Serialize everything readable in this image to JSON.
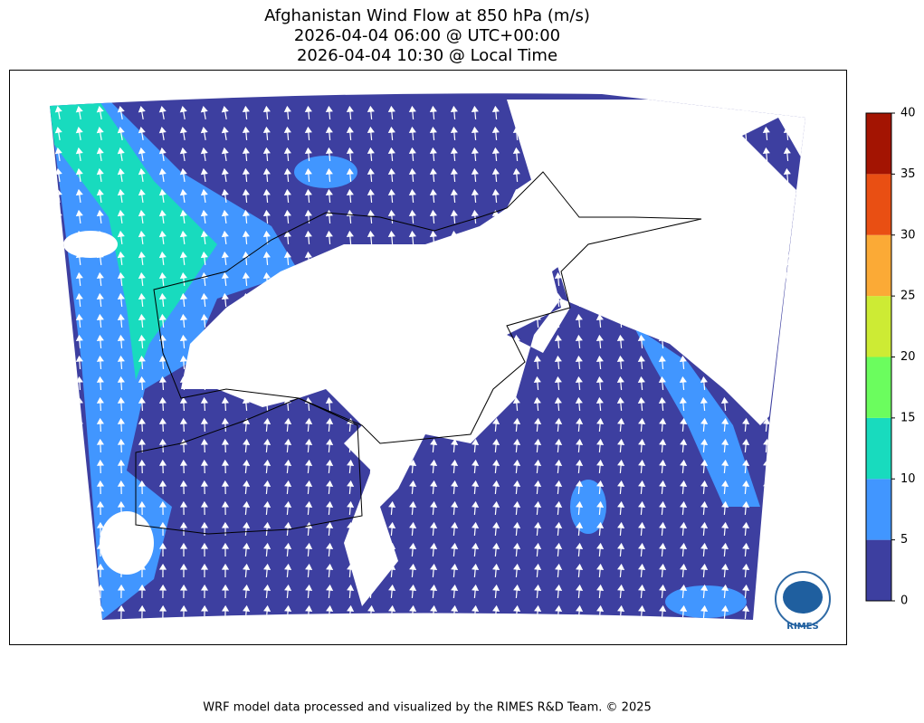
{
  "title": [
    "Afghanistan Wind Flow at 850 hPa (m/s)",
    "2026-04-04 06:00 @ UTC+00:00",
    "2026-04-04 10:30 @ Local Time"
  ],
  "colorbar": {
    "lim": [
      0,
      40
    ],
    "ticks": [
      0,
      5,
      10,
      15,
      20,
      25,
      30,
      35,
      40
    ],
    "colors": [
      "#3d3fa0",
      "#4196ff",
      "#18dbbe",
      "#6bfd5e",
      "#cdeb34",
      "#fbaa36",
      "#e94f13",
      "#a31402"
    ]
  },
  "footer": "WRF model data processed and visualized by the RIMES R&D Team. © 2025",
  "logo": "RIMES"
}
